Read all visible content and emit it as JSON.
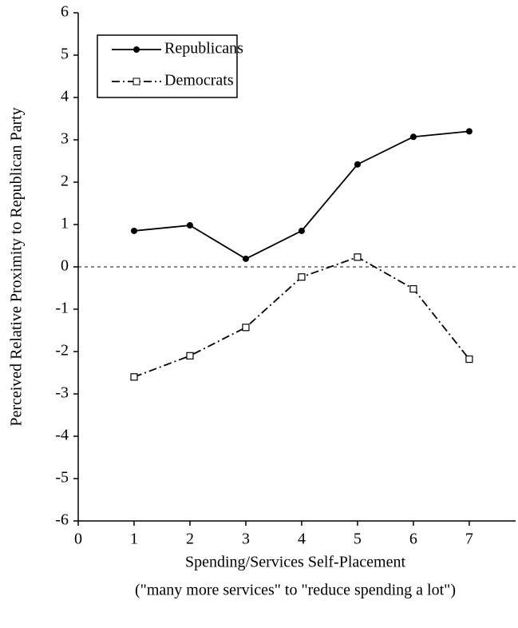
{
  "chart_data": {
    "type": "line",
    "x_label": "Spending/Services Self-Placement",
    "x_sublabel": "(\"many more services\" to \"reduce spending a lot\")",
    "y_label": "Perceived Relative Proximity to Republican Party",
    "x": [
      1,
      2,
      3,
      4,
      5,
      6,
      7
    ],
    "series": [
      {
        "name": "Republicans",
        "color": "#000000",
        "dash": "solid",
        "marker": "filled-circle",
        "values": [
          0.85,
          0.98,
          0.19,
          0.85,
          2.42,
          3.07,
          3.2
        ]
      },
      {
        "name": "Democrats",
        "color": "#000000",
        "dash": "dashdot",
        "marker": "open-square",
        "values": [
          -2.6,
          -2.1,
          -1.43,
          -0.24,
          0.23,
          -0.52,
          -2.18
        ]
      }
    ],
    "xlim": [
      0,
      7.83
    ],
    "xticks": [
      0,
      1,
      2,
      3,
      4,
      5,
      6,
      7
    ],
    "ylim": [
      -6,
      6
    ],
    "yticks": [
      -6,
      -5,
      -4,
      -3,
      -2,
      -1,
      0,
      1,
      2,
      3,
      4,
      5,
      6
    ],
    "reference_line": 0,
    "legend": "upper-left"
  }
}
